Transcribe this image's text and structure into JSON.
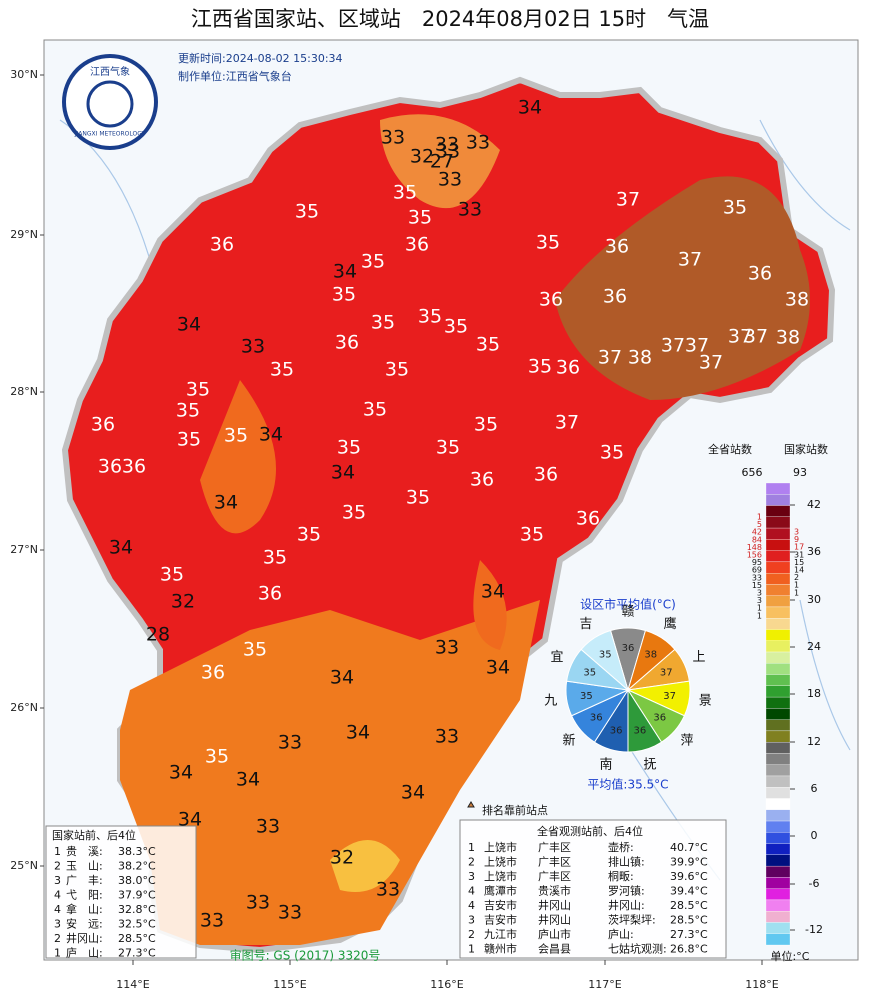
{
  "header": {
    "title": "江西省国家站、区域站　2024年08月02日 15时　气温",
    "update_time": "更新时间:2024-08-02 15:30:34",
    "maker": "制作单位:江西省气象台"
  },
  "logo": {
    "top": "江西气象",
    "bottom": "JIANGXI METEOROLOGY"
  },
  "axes": {
    "lat_labels": [
      "30°N",
      "29°N",
      "28°N",
      "27°N",
      "26°N",
      "25°N"
    ],
    "lon_labels": [
      "114°E",
      "115°E",
      "116°E",
      "117°E",
      "118°E"
    ]
  },
  "map": {
    "temperature_labels": [
      34,
      33,
      33,
      33,
      32,
      33,
      27,
      33,
      33,
      35,
      35,
      35,
      36,
      35,
      34,
      36,
      35,
      36,
      37,
      35,
      37,
      36,
      38,
      35,
      35,
      35,
      35,
      36,
      36,
      34,
      33,
      36,
      35,
      35,
      35,
      36,
      37,
      38,
      37,
      37,
      37,
      37,
      38,
      37,
      35,
      35,
      35,
      35,
      37,
      36,
      35,
      35,
      34,
      35,
      35,
      35,
      36,
      36,
      34,
      36,
      36,
      35,
      34,
      35,
      35,
      36,
      35,
      35,
      34,
      35,
      35,
      32,
      36,
      28,
      34,
      35,
      36,
      33,
      34,
      34,
      33,
      34,
      33,
      35,
      34,
      34,
      34,
      34,
      33,
      32,
      33,
      33,
      33,
      33
    ]
  },
  "pie": {
    "title": "设区市平均值(°C)",
    "average": "平均值:35.5°C",
    "cities": [
      {
        "name": "赣",
        "value": 36,
        "color": "#8a8a8a"
      },
      {
        "name": "鹰",
        "value": 38,
        "color": "#e8780f"
      },
      {
        "name": "上",
        "value": 37,
        "color": "#f0a830"
      },
      {
        "name": "景",
        "value": 37,
        "color": "#f2f000"
      },
      {
        "name": "萍",
        "value": 36,
        "color": "#7cc843"
      },
      {
        "name": "抚",
        "value": 36,
        "color": "#2e9a3a"
      },
      {
        "name": "南",
        "value": 36,
        "color": "#1f5fb0"
      },
      {
        "name": "新",
        "value": 36,
        "color": "#3584dc"
      },
      {
        "name": "九",
        "value": 35,
        "color": "#5aaaea"
      },
      {
        "name": "宜",
        "value": 35,
        "color": "#9ad6f2"
      },
      {
        "name": "吉",
        "value": 35,
        "color": "#c6ecfa"
      }
    ]
  },
  "legend": {
    "province_header": "全省站数",
    "province_total": 656,
    "national_header": "国家站数",
    "national_total": 93,
    "unit": "单位:°C",
    "ticks": [
      42,
      36,
      30,
      24,
      18,
      12,
      6,
      0,
      -6,
      -12
    ],
    "province_counts": [
      1,
      5,
      42,
      84,
      148,
      156,
      95,
      69,
      33,
      15,
      3,
      3,
      1,
      1
    ],
    "national_counts": [
      3,
      9,
      17,
      31,
      15,
      14,
      2,
      1,
      1
    ],
    "marker_note": "排名靠前站点"
  },
  "national_table": {
    "title": "国家站前、后4位",
    "rows": [
      [
        "1",
        "贵　溪:",
        "38.3°C"
      ],
      [
        "2",
        "玉　山:",
        "38.2°C"
      ],
      [
        "3",
        "广　丰:",
        "38.0°C"
      ],
      [
        "4",
        "弋　阳:",
        "37.9°C"
      ],
      [
        "4",
        "拿　山:",
        "32.8°C"
      ],
      [
        "3",
        "安　远:",
        "32.5°C"
      ],
      [
        "2",
        "井冈山:",
        "28.5°C"
      ],
      [
        "1",
        "庐　山:",
        "27.3°C"
      ]
    ]
  },
  "province_table": {
    "title": "全省观测站前、后4位",
    "rows": [
      [
        "1",
        "上饶市",
        "广丰区",
        "壶桥:",
        "40.7°C"
      ],
      [
        "2",
        "上饶市",
        "广丰区",
        "排山镇:",
        "39.9°C"
      ],
      [
        "3",
        "上饶市",
        "广丰区",
        "桐畈:",
        "39.6°C"
      ],
      [
        "4",
        "鹰潭市",
        "贵溪市",
        "罗河镇:",
        "39.4°C"
      ],
      [
        "4",
        "吉安市",
        "井冈山",
        "井冈山:",
        "28.5°C"
      ],
      [
        "3",
        "吉安市",
        "井冈山",
        "茨坪梨坪:",
        "28.5°C"
      ],
      [
        "2",
        "九江市",
        "庐山市",
        "庐山:",
        "27.3°C"
      ],
      [
        "1",
        "赣州市",
        "会昌县",
        "七姑坑观测:",
        "26.8°C"
      ]
    ]
  },
  "approval": "审图号: GS (2017) 3320号"
}
